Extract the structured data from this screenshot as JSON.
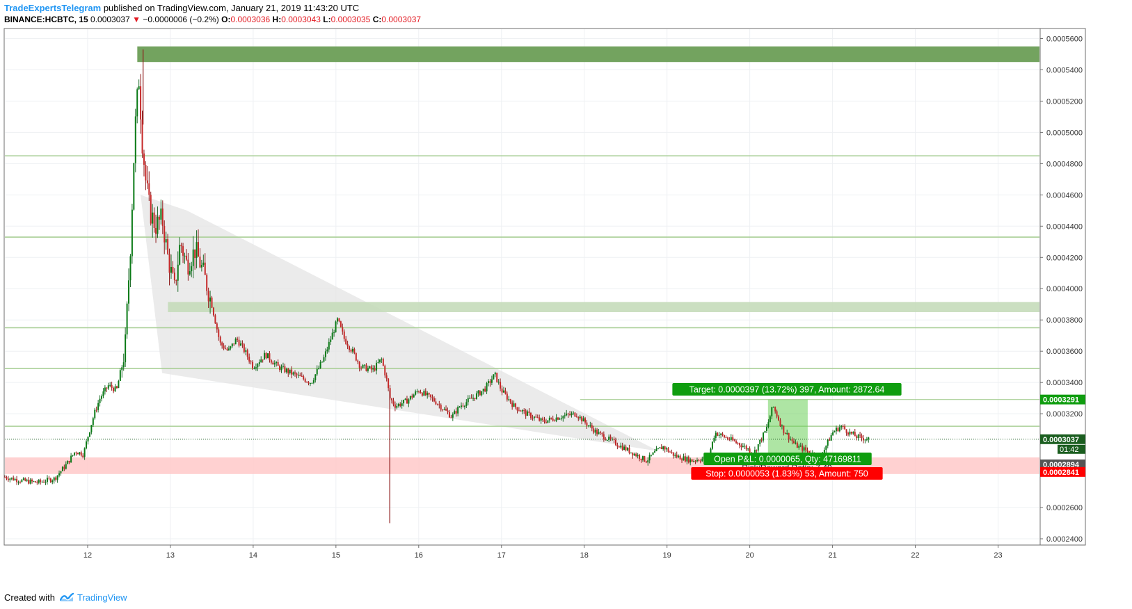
{
  "header": {
    "author": "TradeExpertsTelegram",
    "published": " published on TradingView.com, January 21, 2019 11:43:20 UTC",
    "symbol": "BINANCE:HCBTC, 15",
    "last": "0.0003037",
    "arrow": "▼",
    "change": "−0.0000006 (−0.2%)",
    "o_label": "O:",
    "o_value": "0.0003036",
    "h_label": "H:",
    "h_value": "0.0003043",
    "l_label": "L:",
    "l_value": "0.0003035",
    "c_label": "C:",
    "c_value": "0.0003037"
  },
  "footer": {
    "created": "Created with",
    "brand": "TradingView",
    "icon": "tradingview-logo-icon"
  },
  "colors": {
    "up": "#26a69a",
    "down": "#ef5350",
    "candle_body_up": "#0a7a16",
    "candle_body_down": "#c62828",
    "zone_dark": "#6b9e56",
    "zone_light": "#c5dcba",
    "level": "#a9cf96",
    "target": "#0f9d0f",
    "stop": "#ff0000",
    "stop_zone": "#ffc9c9",
    "wedge": "#e4e4e4"
  },
  "chart_data": {
    "type": "candlestick",
    "x": [
      11.0,
      11.2,
      11.4,
      11.6,
      11.75,
      11.85,
      11.95,
      12.0,
      12.08,
      12.15,
      12.25,
      12.35,
      12.45,
      12.52,
      12.57,
      12.62,
      12.66,
      12.7,
      12.75,
      12.82,
      12.9,
      12.97,
      13.05,
      13.12,
      13.2,
      13.3,
      13.4,
      13.5,
      13.6,
      13.7,
      13.8,
      13.9,
      14.0,
      14.15,
      14.3,
      14.5,
      14.7,
      14.85,
      14.95,
      15.02,
      15.1,
      15.2,
      15.3,
      15.45,
      15.55,
      15.62,
      15.65,
      15.72,
      15.85,
      16.0,
      16.2,
      16.4,
      16.5,
      16.65,
      16.8,
      16.92,
      17.0,
      17.15,
      17.3,
      17.5,
      17.7,
      17.9,
      18.0,
      18.15,
      18.35,
      18.55,
      18.75,
      18.85,
      18.95,
      19.1,
      19.3,
      19.5,
      19.58,
      19.7,
      19.9,
      20.05,
      20.2,
      20.28,
      20.4,
      20.55,
      20.7,
      20.85,
      21.0,
      21.1,
      21.2,
      21.3,
      21.45
    ],
    "close": [
      0.0002795,
      0.0002772,
      0.000276,
      0.0002785,
      0.000288,
      0.000296,
      0.000294,
      0.000305,
      0.00032,
      0.00033,
      0.000338,
      0.000335,
      0.00036,
      0.00043,
      0.0005,
      0.000535,
      0.000495,
      0.00047,
      0.00045,
      0.00044,
      0.000445,
      0.00042,
      0.0004,
      0.00043,
      0.000415,
      0.000425,
      0.00041,
      0.00039,
      0.000365,
      0.00036,
      0.000368,
      0.00036,
      0.00035,
      0.000358,
      0.00035,
      0.000345,
      0.00034,
      0.000355,
      0.00037,
      0.00038,
      0.000368,
      0.00036,
      0.00035,
      0.000348,
      0.000355,
      0.00034,
      0.00033,
      0.000325,
      0.000328,
      0.000335,
      0.000328,
      0.000318,
      0.000325,
      0.00033,
      0.000336,
      0.000345,
      0.000335,
      0.000325,
      0.00032,
      0.000315,
      0.000318,
      0.00032,
      0.000315,
      0.000308,
      0.000302,
      0.000296,
      0.00029,
      0.000295,
      0.000299,
      0.000293,
      0.00029,
      0.000292,
      0.000308,
      0.000305,
      0.0003,
      0.000295,
      0.00031,
      0.000325,
      0.00031,
      0.0003,
      0.000296,
      0.000292,
      0.000308,
      0.000312,
      0.000308,
      0.000305,
      0.0003037
    ],
    "peak": {
      "x": 12.67,
      "y": 0.000553
    },
    "spike_low": {
      "x": 15.65,
      "y": 0.00025
    },
    "xlim": [
      11.0,
      23.5
    ],
    "ylim": [
      0.000236,
      0.000566
    ],
    "x_ticks": [
      "12",
      "13",
      "14",
      "15",
      "16",
      "17",
      "18",
      "19",
      "20",
      "21",
      "22",
      "23"
    ],
    "y_ticks": [
      "0.0002400",
      "0.0002600",
      "0.0003200",
      "0.0003400",
      "0.0003600",
      "0.0003800",
      "0.0004000",
      "0.0004200",
      "0.0004400",
      "0.0004600",
      "0.0004800",
      "0.0005000",
      "0.0005200",
      "0.0005400",
      "0.0005600"
    ],
    "y_tick_values": [
      0.00024,
      0.00026,
      0.00032,
      0.00034,
      0.00036,
      0.00038,
      0.0004,
      0.00042,
      0.00044,
      0.00046,
      0.00048,
      0.0005,
      0.00052,
      0.00054,
      0.00056
    ],
    "horizontal_levels": [
      0.000485,
      0.000433,
      0.000375,
      0.000349,
      0.000312
    ],
    "zones": [
      {
        "kind": "dark",
        "x0": 12.6,
        "x1": 23.5,
        "y0": 0.000545,
        "y1": 0.000555
      },
      {
        "kind": "light",
        "x0": 12.97,
        "x1": 23.5,
        "y0": 0.000385,
        "y1": 0.0003915
      }
    ],
    "wedge": [
      [
        12.64,
        0.00046
      ],
      [
        12.9,
        0.000346
      ],
      [
        18.9,
        0.000296
      ],
      [
        13.2,
        0.00045
      ]
    ],
    "position": {
      "entry": 0.0002894,
      "target": 0.0003291,
      "stop": 0.0002841,
      "last": 0.0003037,
      "x0": 17.95,
      "x1": 23.5,
      "box_x0": 20.22,
      "box_x1": 20.7
    },
    "price_labels": {
      "target": "0.0003291",
      "last": "0.0003037",
      "countdown": "01:42",
      "entry": "0.0002894",
      "stop": "0.0002841"
    },
    "annotations": {
      "target": "Target: 0.0000397 (13.72%) 397, Amount: 2872.64",
      "open_pnl": "Open P&L: 0.0000065, Qty: 47169811",
      "risk_reward": "Risk/Reward Ratio: 7.49",
      "stop": "Stop: 0.0000053 (1.83%) 53, Amount: 750"
    }
  }
}
